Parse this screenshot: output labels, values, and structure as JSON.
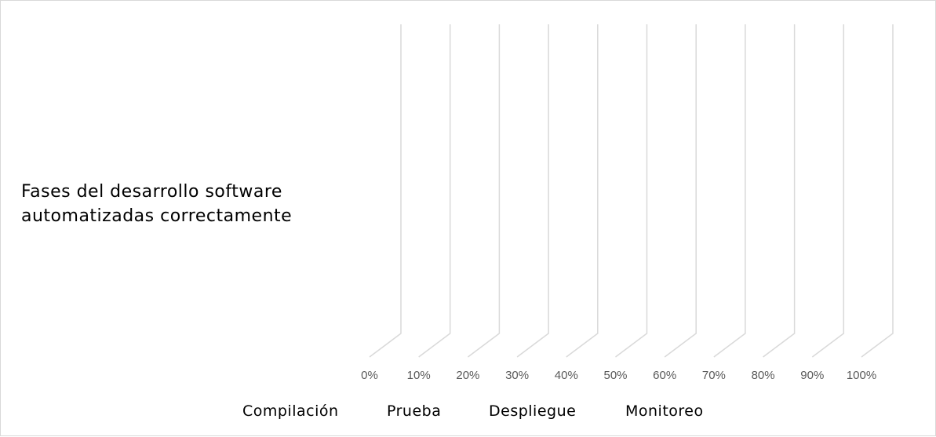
{
  "chart_data": {
    "type": "bar",
    "orientation": "horizontal",
    "stacked": "percent",
    "style": "3d",
    "categories": [
      "Fases del desarrollo software automatizadas correctamente"
    ],
    "series": [
      {
        "name": "Compilación",
        "values": [
          0
        ]
      },
      {
        "name": "Prueba",
        "values": [
          0
        ]
      },
      {
        "name": "Despliegue",
        "values": [
          0
        ]
      },
      {
        "name": "Monitoreo",
        "values": [
          0
        ]
      }
    ],
    "category_label_lines": [
      "Fases del desarrollo software",
      "automatizadas correctamente"
    ],
    "xticks": [
      "0%",
      "10%",
      "20%",
      "30%",
      "40%",
      "50%",
      "60%",
      "70%",
      "80%",
      "90%",
      "100%"
    ],
    "xlim": [
      0,
      100
    ],
    "grid": true,
    "legend": "bottom"
  }
}
